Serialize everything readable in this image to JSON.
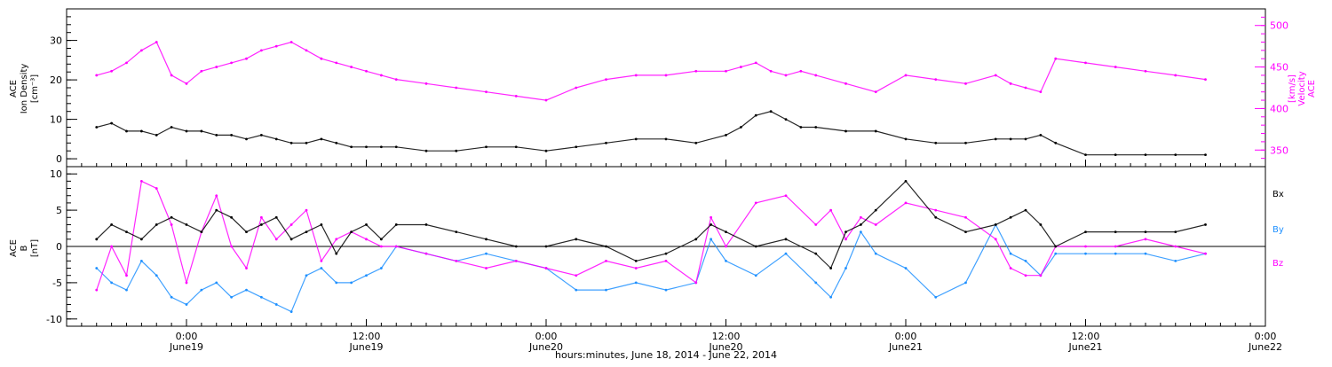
{
  "chart_data": [
    {
      "type": "scatter",
      "panel": "top",
      "ylabel_left": [
        "ACE",
        "Ion Density",
        "[cm⁻³]"
      ],
      "ylabel_right": [
        "ACE",
        "Velocity",
        "[km/s]"
      ],
      "ylim_left": [
        -2,
        38
      ],
      "ylim_right": [
        330,
        520
      ],
      "left_ticks": [
        "0",
        "10",
        "20",
        "30"
      ],
      "right_ticks": [
        "350",
        "400",
        "450",
        "500"
      ],
      "series": [
        {
          "axis": "left",
          "color": "#000000",
          "x_hours": [
            -6,
            -5,
            -4,
            -3,
            -2,
            -1,
            0,
            1,
            2,
            3,
            4,
            5,
            6,
            7,
            8,
            9,
            10,
            11,
            12,
            13,
            14,
            16,
            18,
            20,
            22,
            24,
            26,
            28,
            30,
            32,
            34,
            36,
            37,
            38,
            39,
            40,
            41,
            42,
            44,
            46,
            48,
            50,
            52,
            54,
            55,
            56,
            57,
            58,
            60,
            62,
            64,
            66,
            68
          ],
          "values": [
            8,
            9,
            7,
            7,
            6,
            8,
            7,
            7,
            6,
            6,
            5,
            6,
            5,
            4,
            4,
            5,
            4,
            3,
            3,
            3,
            3,
            2,
            2,
            3,
            3,
            2,
            3,
            4,
            5,
            5,
            4,
            6,
            8,
            11,
            12,
            10,
            8,
            8,
            7,
            7,
            5,
            4,
            4,
            5,
            5,
            5,
            6,
            4,
            1,
            1,
            1,
            1,
            1
          ]
        },
        {
          "axis": "right",
          "color": "#ff00ff",
          "x_hours": [
            -6,
            -5,
            -4,
            -3,
            -2,
            -1,
            0,
            1,
            2,
            3,
            4,
            5,
            6,
            7,
            8,
            9,
            10,
            11,
            12,
            13,
            14,
            16,
            18,
            20,
            22,
            24,
            26,
            28,
            30,
            32,
            34,
            36,
            37,
            38,
            39,
            40,
            41,
            42,
            44,
            46,
            48,
            50,
            52,
            54,
            55,
            56,
            57,
            58,
            60,
            62,
            64,
            66,
            68
          ],
          "values": [
            440,
            445,
            455,
            470,
            480,
            440,
            430,
            445,
            450,
            455,
            460,
            470,
            475,
            480,
            470,
            460,
            455,
            450,
            445,
            440,
            435,
            430,
            425,
            420,
            415,
            410,
            425,
            435,
            440,
            440,
            445,
            445,
            450,
            455,
            445,
            440,
            445,
            440,
            430,
            420,
            440,
            435,
            430,
            440,
            430,
            425,
            420,
            460,
            455,
            450,
            445,
            440,
            435
          ]
        }
      ]
    },
    {
      "type": "scatter",
      "panel": "bottom",
      "ylabel_left": [
        "ACE",
        "B",
        "[nT]"
      ],
      "ylim": [
        -11,
        11
      ],
      "ticks": [
        "-10",
        "-5",
        "0",
        "5",
        "10"
      ],
      "legend": [
        {
          "label": "Bx",
          "color": "#000000"
        },
        {
          "label": "By",
          "color": "#1e90ff"
        },
        {
          "label": "Bz",
          "color": "#ff00ff"
        }
      ],
      "series": [
        {
          "name": "Bx",
          "color": "#000000",
          "x_hours": [
            -6,
            -5,
            -4,
            -3,
            -2,
            -1,
            0,
            1,
            2,
            3,
            4,
            5,
            6,
            7,
            8,
            9,
            10,
            11,
            12,
            13,
            14,
            16,
            18,
            20,
            22,
            24,
            26,
            28,
            30,
            32,
            34,
            35,
            36,
            38,
            40,
            42,
            43,
            44,
            45,
            46,
            48,
            50,
            52,
            54,
            55,
            56,
            57,
            58,
            60,
            62,
            64,
            66,
            68
          ],
          "values": [
            1,
            3,
            2,
            1,
            3,
            4,
            3,
            2,
            5,
            4,
            2,
            3,
            4,
            1,
            2,
            3,
            -1,
            2,
            3,
            1,
            3,
            3,
            2,
            1,
            0,
            0,
            1,
            0,
            -2,
            -1,
            1,
            3,
            2,
            0,
            1,
            -1,
            -3,
            2,
            3,
            5,
            9,
            4,
            2,
            3,
            4,
            5,
            3,
            0,
            2,
            2,
            2,
            2,
            3
          ]
        },
        {
          "name": "By",
          "color": "#1e90ff",
          "x_hours": [
            -6,
            -5,
            -4,
            -3,
            -2,
            -1,
            0,
            1,
            2,
            3,
            4,
            5,
            6,
            7,
            8,
            9,
            10,
            11,
            12,
            13,
            14,
            16,
            18,
            20,
            22,
            24,
            26,
            28,
            30,
            32,
            34,
            35,
            36,
            38,
            40,
            42,
            43,
            44,
            45,
            46,
            48,
            50,
            52,
            54,
            55,
            56,
            57,
            58,
            60,
            62,
            64,
            66,
            68
          ],
          "values": [
            -3,
            -5,
            -6,
            -2,
            -4,
            -7,
            -8,
            -6,
            -5,
            -7,
            -6,
            -7,
            -8,
            -9,
            -4,
            -3,
            -5,
            -5,
            -4,
            -3,
            0,
            -1,
            -2,
            -1,
            -2,
            -3,
            -6,
            -6,
            -5,
            -6,
            -5,
            1,
            -2,
            -4,
            -1,
            -5,
            -7,
            -3,
            2,
            -1,
            -3,
            -7,
            -5,
            3,
            -1,
            -2,
            -4,
            -1,
            -1,
            -1,
            -1,
            -2,
            -1
          ]
        },
        {
          "name": "Bz",
          "color": "#ff00ff",
          "x_hours": [
            -6,
            -5,
            -4,
            -3,
            -2,
            -1,
            0,
            1,
            2,
            3,
            4,
            5,
            6,
            7,
            8,
            9,
            10,
            11,
            12,
            13,
            14,
            16,
            18,
            20,
            22,
            24,
            26,
            28,
            30,
            32,
            34,
            35,
            36,
            38,
            40,
            42,
            43,
            44,
            45,
            46,
            48,
            50,
            52,
            54,
            55,
            56,
            57,
            58,
            60,
            62,
            64,
            66,
            68
          ],
          "values": [
            -6,
            0,
            -4,
            9,
            8,
            3,
            -5,
            2,
            7,
            0,
            -3,
            4,
            1,
            3,
            5,
            -2,
            1,
            2,
            1,
            0,
            0,
            -1,
            -2,
            -3,
            -2,
            -3,
            -4,
            -2,
            -3,
            -2,
            -5,
            4,
            0,
            6,
            7,
            3,
            5,
            1,
            4,
            3,
            6,
            5,
            4,
            1,
            -3,
            -4,
            -4,
            0,
            0,
            0,
            1,
            0,
            -1
          ]
        }
      ],
      "zero_line": true
    }
  ],
  "x_axis": {
    "ticks": [
      {
        "time": "0:00",
        "date": "June19"
      },
      {
        "time": "12:00",
        "date": "June19"
      },
      {
        "time": "0:00",
        "date": "June20"
      },
      {
        "time": "12:00",
        "date": "June20"
      },
      {
        "time": "0:00",
        "date": "June21"
      },
      {
        "time": "12:00",
        "date": "June21"
      },
      {
        "time": "0:00",
        "date": "June22"
      }
    ],
    "xlim_hours": [
      -8,
      72
    ],
    "label": "hours:minutes, June 18, 2014 - June 22, 2014"
  }
}
